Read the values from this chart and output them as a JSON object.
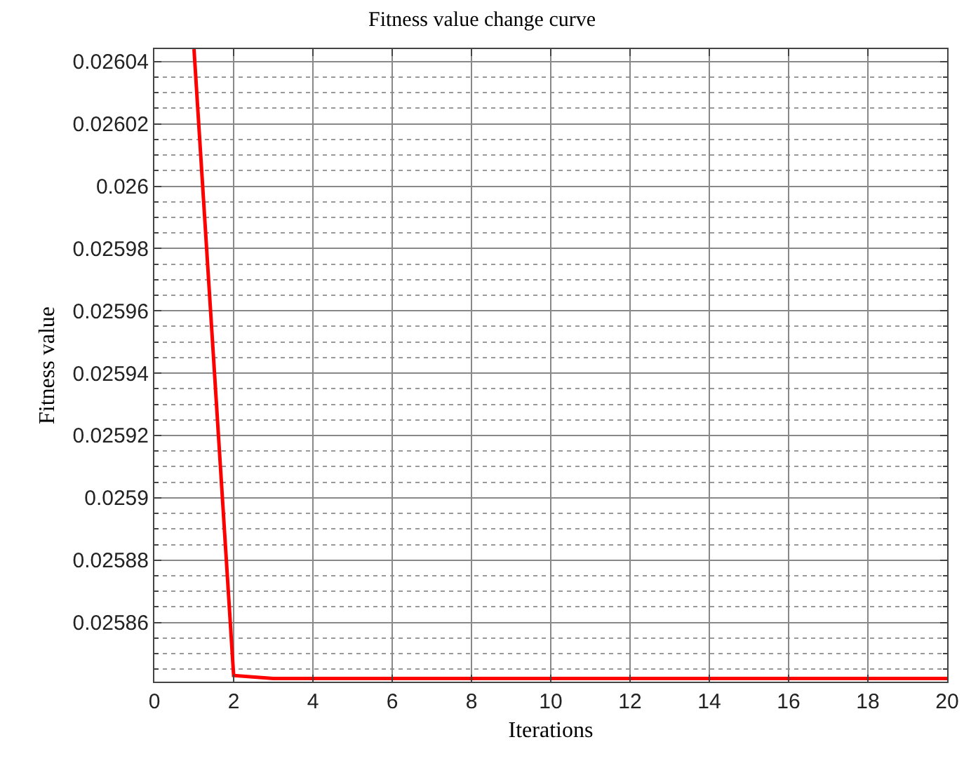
{
  "chart_data": {
    "type": "line",
    "title": "Fitness value change curve",
    "xlabel": "Iterations",
    "ylabel": "Fitness value",
    "x": [
      1,
      2,
      3,
      4,
      5,
      6,
      7,
      8,
      9,
      10,
      11,
      12,
      13,
      14,
      15,
      16,
      17,
      18,
      19,
      20
    ],
    "series": [
      {
        "color": "#ff0000",
        "values": [
          0.026044,
          0.025843,
          0.025842,
          0.025842,
          0.025842,
          0.025842,
          0.025842,
          0.025842,
          0.025842,
          0.025842,
          0.025842,
          0.025842,
          0.025842,
          0.025842,
          0.025842,
          0.025842,
          0.025842,
          0.025842,
          0.025842,
          0.025842
        ]
      }
    ],
    "xlim": [
      0,
      20
    ],
    "xticks": [
      0,
      2,
      4,
      6,
      8,
      10,
      12,
      14,
      16,
      18,
      20
    ],
    "ylim": [
      0.025841,
      0.026044
    ],
    "yticks": [
      0.02586,
      0.02588,
      0.0259,
      0.02592,
      0.02594,
      0.02596,
      0.02598,
      0.026,
      0.02602,
      0.02604
    ],
    "grid": true,
    "marker": "none",
    "line_style": "solid"
  }
}
